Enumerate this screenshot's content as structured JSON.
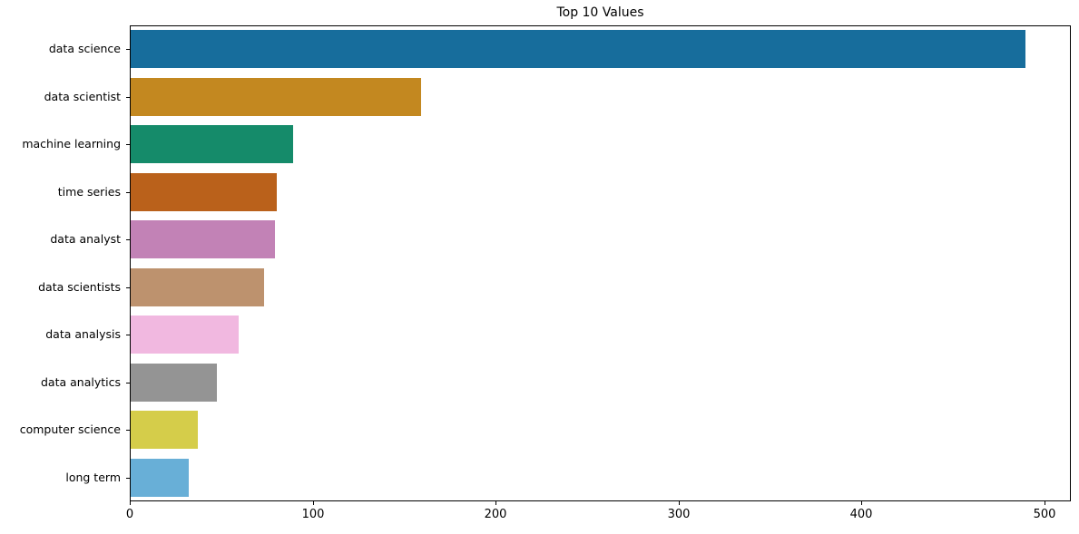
{
  "chart_data": {
    "type": "bar",
    "orientation": "horizontal",
    "title": "Top 10 Values",
    "xlabel": "",
    "ylabel": "",
    "categories": [
      "data science",
      "data scientist",
      "machine learning",
      "time series",
      "data analyst",
      "data scientists",
      "data analysis",
      "data analytics",
      "computer science",
      "long term"
    ],
    "values": [
      490,
      159,
      89,
      80,
      79,
      73,
      59,
      47,
      37,
      32
    ],
    "bar_colors": [
      "#176d9c",
      "#c38820",
      "#158b6a",
      "#ba611b",
      "#c282b6",
      "#bd926e",
      "#f1b8e0",
      "#949494",
      "#d5cd4a",
      "#68afd7"
    ],
    "x_ticks": [
      0,
      100,
      200,
      300,
      400,
      500
    ],
    "xlim": [
      0,
      514.5
    ],
    "grid": false,
    "legend": null,
    "spine_color": "#000000",
    "background_color": "#ffffff"
  }
}
